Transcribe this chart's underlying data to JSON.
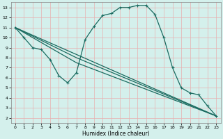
{
  "title": "",
  "xlabel": "Humidex (Indice chaleur)",
  "xlim": [
    -0.5,
    23.5
  ],
  "ylim": [
    1.5,
    13.5
  ],
  "xticks": [
    0,
    1,
    2,
    3,
    4,
    5,
    6,
    7,
    8,
    9,
    10,
    11,
    12,
    13,
    14,
    15,
    16,
    17,
    18,
    19,
    20,
    21,
    22,
    23
  ],
  "yticks": [
    2,
    3,
    4,
    5,
    6,
    7,
    8,
    9,
    10,
    11,
    12,
    13
  ],
  "bg_color": "#d4f0ec",
  "grid_color": "#e8b0b0",
  "line_color": "#1a6b60",
  "curve_x": [
    0,
    1,
    2,
    3,
    4,
    5,
    6,
    7,
    8,
    9,
    10,
    11,
    12,
    13,
    14,
    15,
    16,
    17,
    18,
    19,
    20,
    21,
    22,
    23
  ],
  "curve_y": [
    11,
    10,
    9,
    8.8,
    7.8,
    6.2,
    5.5,
    6.5,
    9.8,
    11.1,
    12.2,
    12.4,
    13.0,
    13.0,
    13.2,
    13.2,
    12.3,
    10.0,
    7.0,
    5.0,
    4.5,
    4.3,
    3.2,
    2.2
  ],
  "line2_x": [
    0,
    23
  ],
  "line2_y": [
    11,
    2.2
  ],
  "line3_x": [
    0,
    7,
    23
  ],
  "line3_y": [
    11,
    7.5,
    2.2
  ],
  "line4_x": [
    0,
    7,
    23
  ],
  "line4_y": [
    11,
    8.0,
    2.2
  ],
  "lw": 0.9,
  "marker_size": 2.5,
  "tick_fontsize": 4.5,
  "xlabel_fontsize": 5.5
}
